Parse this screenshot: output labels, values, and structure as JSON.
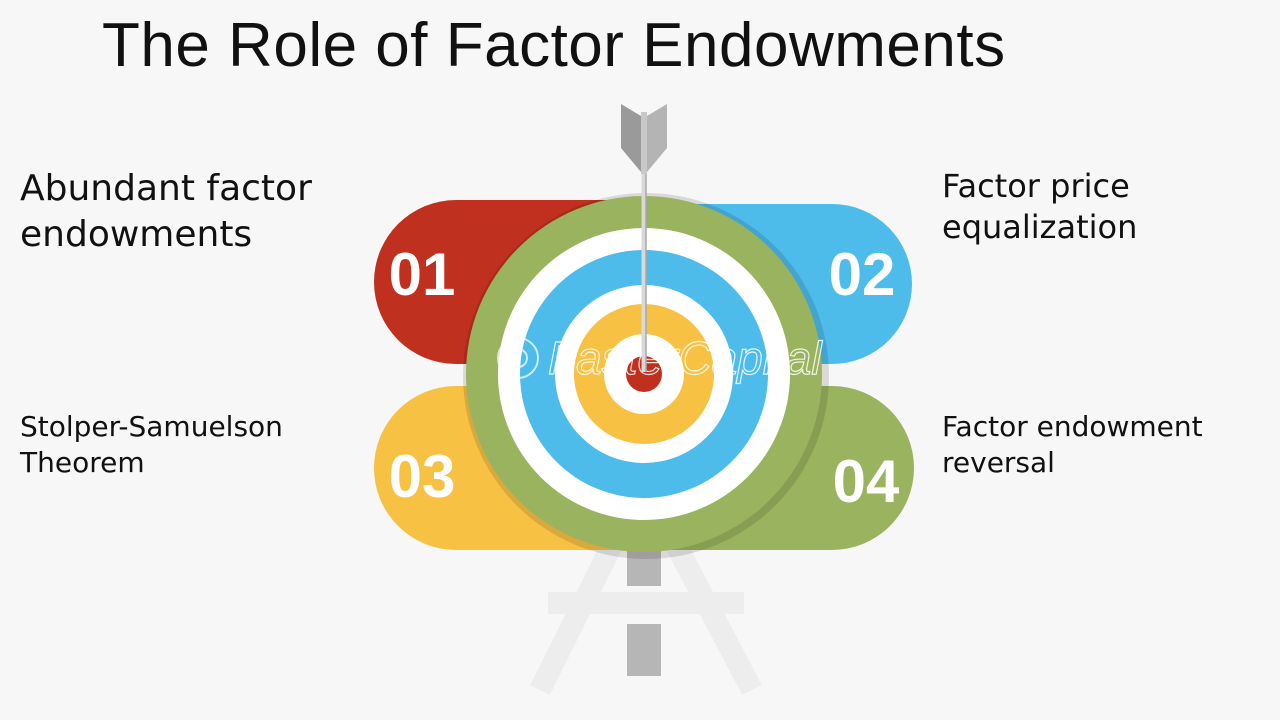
{
  "title": "The Role of Factor Endowments",
  "items": [
    {
      "number": "01",
      "label": "Abundant factor endowments",
      "color": "#c0301f"
    },
    {
      "number": "02",
      "label": "Factor price equalization",
      "color": "#4dbcea"
    },
    {
      "number": "03",
      "label": "Stolper-Samuelson Theorem",
      "color": "#f7c144"
    },
    {
      "number": "04",
      "label": "Factor endowment reversal",
      "color": "#99b35e"
    }
  ],
  "target": {
    "ring_colors": [
      "#99b35e",
      "#ffffff",
      "#4dbcea",
      "#ffffff",
      "#f7c144",
      "#ffffff",
      "#c0301f"
    ]
  },
  "watermark": "FasterCapital"
}
